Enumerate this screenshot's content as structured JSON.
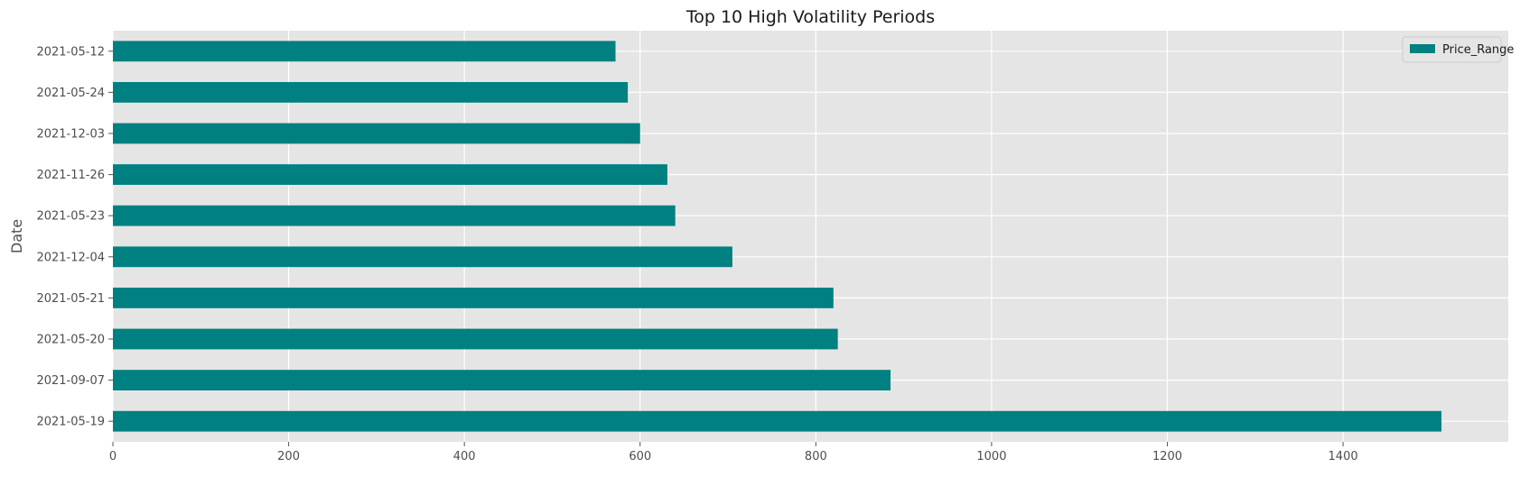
{
  "chart_data": {
    "type": "bar",
    "orientation": "horizontal",
    "title": "Top 10 High Volatility Periods",
    "xlabel": "",
    "ylabel": "Date",
    "categories": [
      "2021-05-19",
      "2021-09-07",
      "2021-05-20",
      "2021-05-21",
      "2021-12-04",
      "2021-05-23",
      "2021-11-26",
      "2021-12-03",
      "2021-05-24",
      "2021-05-12"
    ],
    "series": [
      {
        "name": "Price_Range",
        "values": [
          1512,
          885,
          825,
          820,
          705,
          640,
          631,
          600,
          586,
          572
        ],
        "color": "#008080"
      }
    ],
    "xlim": [
      0,
      1588
    ],
    "xticks": [
      0,
      200,
      400,
      600,
      800,
      1000,
      1200,
      1400
    ],
    "grid": true,
    "legend": "top-right",
    "background": "#e5e5e5",
    "grid_color": "#ffffff"
  }
}
